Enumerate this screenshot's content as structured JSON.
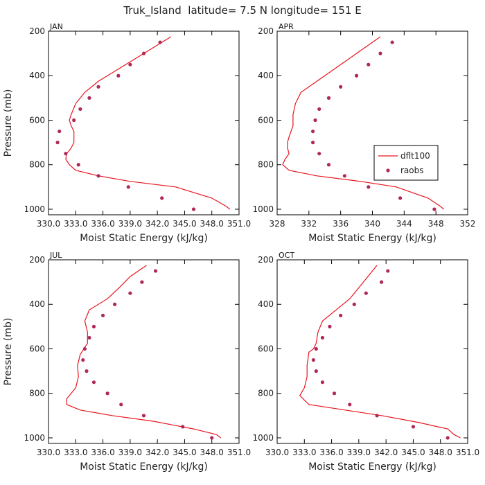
{
  "figure_title": "Truk_Island  latitude= 7.5 N longitude= 151 E",
  "colors": {
    "model": "#e8141c",
    "observations": "#b0275a",
    "axes": "#000000"
  },
  "legend": {
    "model_label": "dflt100",
    "obs_label": "raobs"
  },
  "chart_data": [
    {
      "type": "line",
      "panel_label": "JAN",
      "xlabel": "Moist Static Energy (kJ/kg)",
      "ylabel": "Pressure (mb)",
      "xlim": [
        330.0,
        351.0
      ],
      "xticks": [
        330.0,
        333.0,
        336.0,
        339.0,
        342.0,
        345.0,
        348.0,
        351.0
      ],
      "xtick_labels": [
        "330.0",
        "333.0",
        "336.0",
        "339.0",
        "342.0",
        "345.0",
        "348.0",
        "351.0"
      ],
      "ylim": [
        1025,
        200
      ],
      "yticks": [
        200,
        400,
        600,
        800,
        1000
      ],
      "legend_visible": false,
      "series": [
        {
          "name": "dflt100",
          "x": [
            343.5,
            341.5,
            339.5,
            337.5,
            335.5,
            334.0,
            333.0,
            332.5,
            332.3,
            332.5,
            332.8,
            332.8,
            332.5,
            332.0,
            331.9,
            332.3,
            333.0,
            335.5,
            339.0,
            344.0,
            348.0,
            349.5,
            350.0
          ],
          "y": [
            225,
            275,
            325,
            375,
            425,
            475,
            525,
            575,
            600,
            625,
            650,
            700,
            725,
            750,
            775,
            800,
            825,
            850,
            875,
            900,
            950,
            985,
            1000
          ]
        },
        {
          "name": "raobs",
          "x": [
            342.3,
            340.5,
            339.0,
            337.7,
            335.5,
            334.5,
            333.5,
            332.8,
            331.2,
            331.0,
            331.9,
            333.3,
            335.5,
            338.8,
            342.5,
            346.0
          ],
          "y": [
            250,
            300,
            350,
            400,
            450,
            500,
            550,
            600,
            650,
            700,
            750,
            800,
            850,
            900,
            950,
            1000
          ]
        }
      ]
    },
    {
      "type": "line",
      "panel_label": "APR",
      "xlabel": "Moist Static Energy (kJ/kg)",
      "ylabel": "",
      "xlim": [
        328,
        352
      ],
      "xticks": [
        328,
        332,
        336,
        340,
        344,
        348,
        352
      ],
      "xtick_labels": [
        "328",
        "332",
        "336",
        "340",
        "344",
        "348",
        "352"
      ],
      "ylim": [
        1025,
        200
      ],
      "yticks": [
        200,
        400,
        600,
        800,
        1000
      ],
      "legend_visible": true,
      "series": [
        {
          "name": "dflt100",
          "x": [
            341.0,
            339.0,
            337.0,
            335.0,
            333.0,
            331.0,
            330.3,
            330.0,
            330.0,
            329.5,
            329.3,
            329.3,
            329.5,
            329.0,
            328.7,
            329.5,
            333.0,
            338.5,
            343.0,
            347.0,
            348.5,
            349.0
          ],
          "y": [
            225,
            275,
            325,
            375,
            425,
            475,
            525,
            575,
            625,
            675,
            700,
            725,
            750,
            775,
            800,
            825,
            850,
            875,
            900,
            950,
            985,
            1000
          ]
        },
        {
          "name": "raobs",
          "x": [
            342.5,
            341.0,
            339.5,
            338.0,
            336.0,
            334.5,
            333.3,
            332.8,
            332.5,
            332.5,
            333.3,
            334.5,
            336.5,
            339.5,
            343.5,
            347.8
          ],
          "y": [
            250,
            300,
            350,
            400,
            450,
            500,
            550,
            600,
            650,
            700,
            750,
            800,
            850,
            900,
            950,
            1000
          ]
        }
      ]
    },
    {
      "type": "line",
      "panel_label": "JUL",
      "xlabel": "Moist Static Energy (kJ/kg)",
      "ylabel": "Pressure (mb)",
      "xlim": [
        330.0,
        351.0
      ],
      "xticks": [
        330.0,
        333.0,
        336.0,
        339.0,
        342.0,
        345.0,
        348.0,
        351.0
      ],
      "xtick_labels": [
        "330.0",
        "333.0",
        "336.0",
        "339.0",
        "342.0",
        "345.0",
        "348.0",
        "351.0"
      ],
      "ylim": [
        1025,
        200
      ],
      "yticks": [
        200,
        400,
        600,
        800,
        1000
      ],
      "legend_visible": false,
      "series": [
        {
          "name": "dflt100",
          "x": [
            340.8,
            339.0,
            337.8,
            336.5,
            334.5,
            334.0,
            334.3,
            334.3,
            333.5,
            333.2,
            333.3,
            333.0,
            332.5,
            332.0,
            332.0,
            333.5,
            337.0,
            341.5,
            346.0,
            348.5,
            349.0
          ],
          "y": [
            225,
            275,
            325,
            375,
            425,
            475,
            525,
            575,
            625,
            675,
            725,
            775,
            800,
            825,
            850,
            875,
            900,
            925,
            960,
            985,
            1000
          ]
        },
        {
          "name": "raobs",
          "x": [
            341.8,
            340.3,
            339.0,
            337.3,
            336.0,
            335.0,
            334.5,
            334.0,
            333.8,
            334.2,
            335.0,
            336.5,
            338.0,
            340.5,
            344.8,
            348.0
          ],
          "y": [
            250,
            300,
            350,
            400,
            450,
            500,
            550,
            600,
            650,
            700,
            750,
            800,
            850,
            900,
            950,
            1000
          ]
        }
      ]
    },
    {
      "type": "line",
      "panel_label": "OCT",
      "xlabel": "Moist Static Energy (kJ/kg)",
      "ylabel": "",
      "xlim": [
        330.0,
        351.0
      ],
      "xticks": [
        330.0,
        333.0,
        336.0,
        339.0,
        342.0,
        345.0,
        348.0,
        351.0
      ],
      "xtick_labels": [
        "330.0",
        "333.0",
        "336.0",
        "339.0",
        "342.0",
        "345.0",
        "348.0",
        "351.0"
      ],
      "ylim": [
        1025,
        200
      ],
      "yticks": [
        200,
        400,
        600,
        800,
        1000
      ],
      "legend_visible": false,
      "series": [
        {
          "name": "dflt100",
          "x": [
            341.0,
            340.0,
            339.0,
            338.0,
            336.5,
            335.0,
            334.5,
            334.3,
            334.0,
            333.5,
            333.3,
            333.3,
            333.0,
            332.5,
            333.5,
            337.5,
            341.5,
            345.5,
            348.8,
            349.5,
            350.2
          ],
          "y": [
            225,
            275,
            325,
            375,
            425,
            475,
            525,
            575,
            600,
            615,
            675,
            725,
            775,
            810,
            850,
            875,
            900,
            930,
            960,
            985,
            1000
          ]
        },
        {
          "name": "raobs",
          "x": [
            342.2,
            341.5,
            339.8,
            338.5,
            337.0,
            335.8,
            335.0,
            334.3,
            334.0,
            334.3,
            335.0,
            336.3,
            338.0,
            341.0,
            345.0,
            348.8
          ],
          "y": [
            250,
            300,
            350,
            400,
            450,
            500,
            550,
            600,
            650,
            700,
            750,
            800,
            850,
            900,
            950,
            1000
          ]
        }
      ]
    }
  ]
}
